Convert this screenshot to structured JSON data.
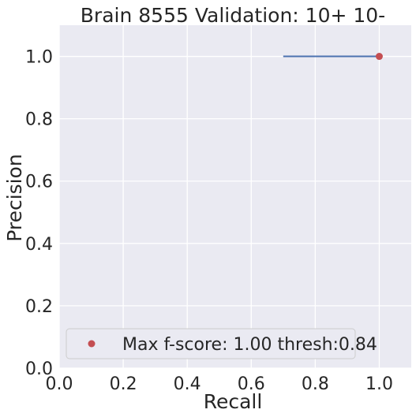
{
  "chart_data": {
    "type": "line",
    "title": "Brain 8555 Validation: 10+ 10-",
    "xlabel": "Recall",
    "ylabel": "Precision",
    "xlim": [
      0,
      1.1
    ],
    "ylim": [
      0,
      1.1
    ],
    "xticks": [
      0.0,
      0.2,
      0.4,
      0.6,
      0.8,
      1.0
    ],
    "yticks": [
      0.0,
      0.2,
      0.4,
      0.6,
      0.8,
      1.0
    ],
    "tick_labels_x": [
      "0.0",
      "0.2",
      "0.4",
      "0.6",
      "0.8",
      "1.0"
    ],
    "tick_labels_y": [
      "0.0",
      "0.2",
      "0.4",
      "0.6",
      "0.8",
      "1.0"
    ],
    "grid": true,
    "series": [
      {
        "kind": "line",
        "color": "#4c72b0",
        "x": [
          0.7,
          1.0
        ],
        "y": [
          1.0,
          1.0
        ]
      },
      {
        "kind": "scatter",
        "color": "#c44e52",
        "x": [
          1.0
        ],
        "y": [
          1.0
        ]
      }
    ],
    "legend": {
      "placement": "lower-left",
      "entries": [
        {
          "label": "Max f-score: 1.00 thresh:0.84",
          "color": "#c44e52",
          "marker": "dot"
        }
      ]
    },
    "background": "#eaeaf2",
    "grid_color": "#ffffff"
  }
}
